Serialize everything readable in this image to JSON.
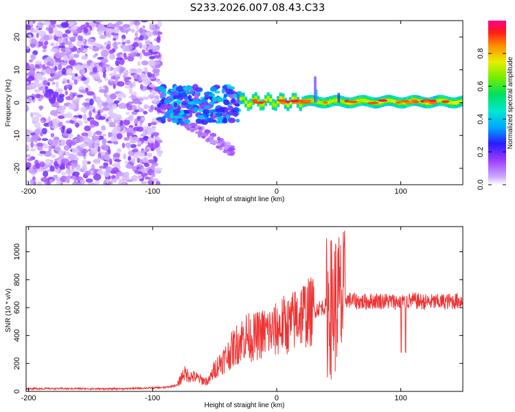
{
  "page_title": "S233.2026.007.08.43.C33",
  "chart_data": [
    {
      "type": "heatmap",
      "name": "spectrogram",
      "xlabel": "Height of straight line (km)",
      "ylabel": "Frequency (Hz)",
      "xlim": [
        -202,
        150
      ],
      "ylim": [
        -25,
        25
      ],
      "xticks": [
        -200,
        -100,
        0,
        100
      ],
      "yticks": [
        -20,
        -10,
        0,
        10,
        20
      ],
      "colorbar": {
        "label": "Normalized spectral amplitude",
        "range": [
          0,
          1
        ],
        "ticks": [
          0.0,
          0.2,
          0.4,
          0.6,
          0.8
        ],
        "tick_labels": [
          "0.0",
          "0.2",
          "0.4",
          "0.6",
          "0.8"
        ]
      },
      "regions": [
        {
          "x_range": [
            -202,
            -92
          ],
          "description": "scattered low amplitude noise",
          "amplitude": [
            0.02,
            0.2
          ]
        },
        {
          "x_range": [
            -95,
            -30
          ],
          "freq_range": [
            -7,
            5
          ],
          "description": "clustered blobs",
          "amplitude": [
            0.15,
            0.45
          ]
        },
        {
          "x_range": [
            -30,
            150
          ],
          "freq_center": 0.5,
          "description": "narrow ridge",
          "amplitude": [
            0.4,
            1.0
          ]
        }
      ]
    },
    {
      "type": "line",
      "name": "snr",
      "xlabel": "Height of straight line (km)",
      "ylabel": "SNR (10 * v/v)",
      "xlim": [
        -202,
        150
      ],
      "ylim": [
        0,
        1180
      ],
      "xticks": [
        -200,
        -100,
        0,
        100
      ],
      "yticks": [
        0,
        200,
        400,
        600,
        800,
        1000
      ],
      "series": [
        {
          "name": "SNR",
          "color": "#ee3333",
          "x": [
            -202,
            -180,
            -160,
            -140,
            -120,
            -100,
            -90,
            -80,
            -75,
            -70,
            -65,
            -60,
            -55,
            -50,
            -45,
            -40,
            -35,
            -30,
            -25,
            -20,
            -15,
            -10,
            -5,
            0,
            5,
            10,
            15,
            20,
            25,
            30,
            35,
            40,
            45,
            48,
            50,
            52,
            55,
            60,
            70,
            80,
            90,
            100,
            110,
            120,
            130,
            140,
            150
          ],
          "values": [
            20,
            20,
            20,
            18,
            20,
            25,
            28,
            45,
            130,
            110,
            100,
            80,
            70,
            160,
            210,
            250,
            310,
            360,
            400,
            380,
            400,
            420,
            430,
            440,
            480,
            470,
            520,
            560,
            560,
            580,
            600,
            610,
            600,
            640,
            650,
            620,
            660,
            650,
            640,
            650,
            645,
            640,
            650,
            640,
            640,
            645,
            650
          ]
        }
      ]
    }
  ]
}
